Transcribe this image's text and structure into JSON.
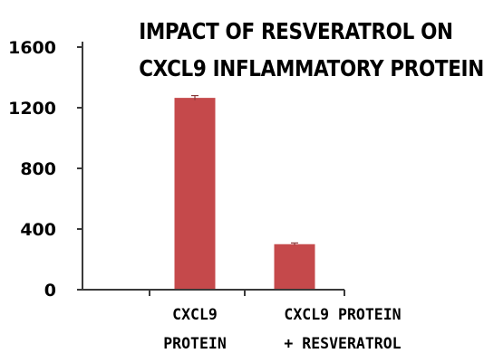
{
  "chart_data": {
    "type": "bar",
    "title": [
      "IMPACT OF RESVERATROL ON",
      "CXCL9 INFLAMMATORY PROTEIN"
    ],
    "categories": [
      [
        "CXCL9",
        "PROTEIN"
      ],
      [
        "CXCL9 PROTEIN",
        "+ RESVERATROL"
      ]
    ],
    "values": [
      1265,
      300
    ],
    "error": [
      15,
      8
    ],
    "ylim": [
      0,
      1600
    ],
    "yticks": [
      0,
      400,
      800,
      1200,
      1600
    ],
    "xlabel": "",
    "ylabel": "",
    "bar_color": "#c5494b",
    "grid": false,
    "legend": "none"
  }
}
